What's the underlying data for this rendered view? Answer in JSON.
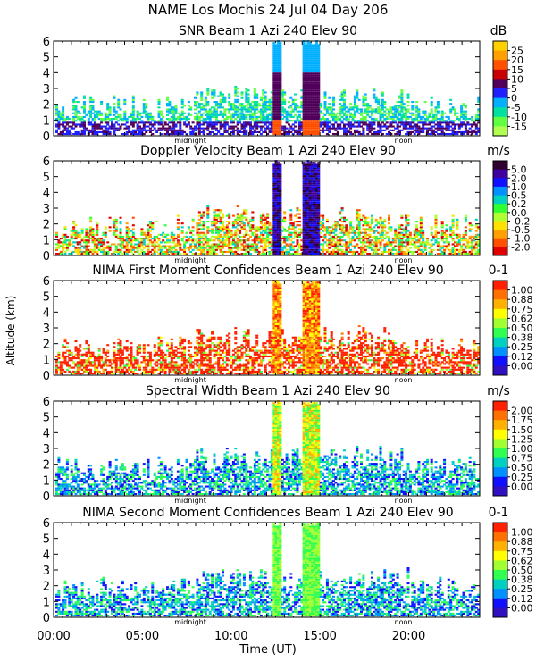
{
  "figure": {
    "title_line1": "NAME Los Mochis    24 Jul 04 Day 206",
    "ylabel": "Altitude (km)",
    "xlabel": "Time (UT)",
    "x_ticks": [
      "00:00",
      "05:00",
      "10:00",
      "15:00",
      "20:00"
    ],
    "marker_midnight": "midnight",
    "marker_noon": "noon"
  },
  "chart_data": [
    {
      "type": "heatmap",
      "title": "SNR Beam 1 Azi 240 Elev 90",
      "units": "dB",
      "xlim": [
        0,
        24
      ],
      "ylim": [
        0,
        6
      ],
      "y_ticks": [
        "0",
        "1",
        "2",
        "3",
        "4",
        "5",
        "6"
      ],
      "colorbar_ticks": [
        "25",
        "20",
        "15",
        "10",
        "5",
        "0",
        "-5",
        "-10",
        "-15"
      ],
      "colorbar_colors": [
        "#ffd000",
        "#ffa000",
        "#ff5000",
        "#c80000",
        "#50005a",
        "#2020ff",
        "#00b0ff",
        "#00e0a0",
        "#60ff40",
        "#b0ff50"
      ],
      "field": "snr"
    },
    {
      "type": "heatmap",
      "title": "Doppler Velocity Beam 1 Azi 240 Elev 90",
      "units": "m/s",
      "xlim": [
        0,
        24
      ],
      "ylim": [
        0,
        6
      ],
      "y_ticks": [
        "0",
        "1",
        "2",
        "3",
        "4",
        "5",
        "6"
      ],
      "colorbar_ticks": [
        "5.0",
        "2.0",
        "1.0",
        "0.5",
        "0.2",
        "0.0",
        "-0.2",
        "-0.5",
        "-1.0",
        "-2.0"
      ],
      "colorbar_colors": [
        "#300030",
        "#4000a0",
        "#1010ff",
        "#0090ff",
        "#00d0c0",
        "#30ff30",
        "#b0ff30",
        "#ffe000",
        "#ffa000",
        "#ff5000",
        "#e00000"
      ],
      "field": "velocity"
    },
    {
      "type": "heatmap",
      "title": "NIMA First Moment Confidences Beam 1 Azi 240 Elev 90",
      "units": "0-1",
      "xlim": [
        0,
        24
      ],
      "ylim": [
        0,
        6
      ],
      "y_ticks": [
        "0",
        "1",
        "2",
        "3",
        "4",
        "5",
        "6"
      ],
      "colorbar_ticks": [
        "1.00",
        "0.88",
        "0.75",
        "0.62",
        "0.50",
        "0.38",
        "0.25",
        "0.12",
        "0.00"
      ],
      "colorbar_colors": [
        "#ff2000",
        "#ff7000",
        "#ffb000",
        "#ffff00",
        "#a0ff30",
        "#30ff50",
        "#00d0c0",
        "#0090ff",
        "#1010ff",
        "#3010c0"
      ],
      "field": "conf1"
    },
    {
      "type": "heatmap",
      "title": "Spectral Width Beam 1 Azi 240 Elev 90",
      "units": "m/s",
      "xlim": [
        0,
        24
      ],
      "ylim": [
        0,
        6
      ],
      "y_ticks": [
        "0",
        "1",
        "2",
        "3",
        "4",
        "5",
        "6"
      ],
      "colorbar_ticks": [
        "2.00",
        "1.75",
        "1.50",
        "1.25",
        "1.00",
        "0.75",
        "0.50",
        "0.25",
        "0.00"
      ],
      "colorbar_colors": [
        "#ff2000",
        "#ff7000",
        "#ffb000",
        "#ffff00",
        "#a0ff30",
        "#30ff50",
        "#00d0c0",
        "#0090ff",
        "#1010ff",
        "#3010c0"
      ],
      "field": "width"
    },
    {
      "type": "heatmap",
      "title": "NIMA Second Moment Confidences Beam 1 Azi 240 Elev 90",
      "units": "0-1",
      "xlim": [
        0,
        24
      ],
      "ylim": [
        0,
        6
      ],
      "y_ticks": [
        "0",
        "1",
        "2",
        "3",
        "4",
        "5",
        "6"
      ],
      "colorbar_ticks": [
        "1.00",
        "0.88",
        "0.75",
        "0.62",
        "0.50",
        "0.38",
        "0.25",
        "0.12",
        "0.00"
      ],
      "colorbar_colors": [
        "#ff2000",
        "#ff7000",
        "#ffb000",
        "#ffff00",
        "#a0ff30",
        "#30ff50",
        "#00d0c0",
        "#0090ff",
        "#1010ff",
        "#3010c0"
      ],
      "field": "conf2"
    }
  ]
}
